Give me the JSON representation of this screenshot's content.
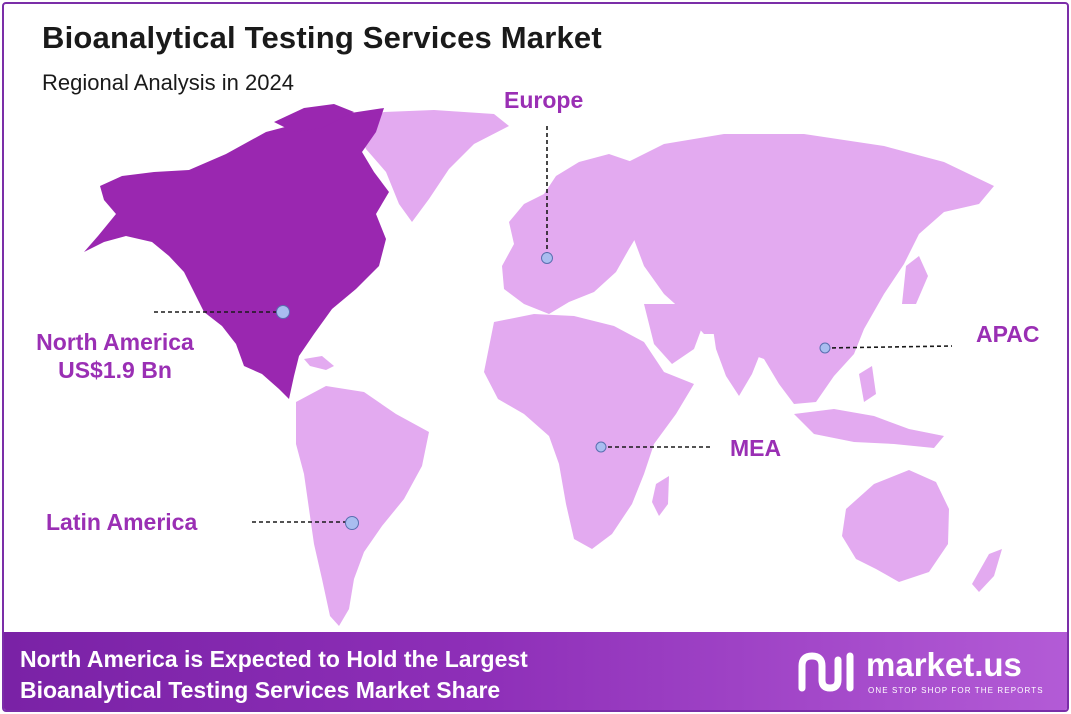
{
  "header": {
    "title": "Bioanalytical Testing Services Market",
    "subtitle": "Regional Analysis in 2024"
  },
  "map": {
    "highlight_color": "#9a27b0",
    "base_color": "#e3aaf0",
    "label_color": "#9a2fb4",
    "regions": [
      {
        "id": "europe",
        "label": "Europe",
        "highlighted": false
      },
      {
        "id": "north-america",
        "label": "North America",
        "value": "US$1.9 Bn",
        "highlighted": true
      },
      {
        "id": "apac",
        "label": "APAC",
        "highlighted": false
      },
      {
        "id": "mea",
        "label": "MEA",
        "highlighted": false
      },
      {
        "id": "latin-america",
        "label": "Latin America",
        "highlighted": false
      }
    ]
  },
  "footer": {
    "line1": "North America is Expected to Hold the Largest",
    "line2": "Bioanalytical Testing Services Market Share",
    "background": "#8e2fb8"
  },
  "brand": {
    "name": "market.us",
    "tagline": "ONE STOP SHOP FOR THE REPORTS",
    "icon": "market-us-logo-icon"
  }
}
